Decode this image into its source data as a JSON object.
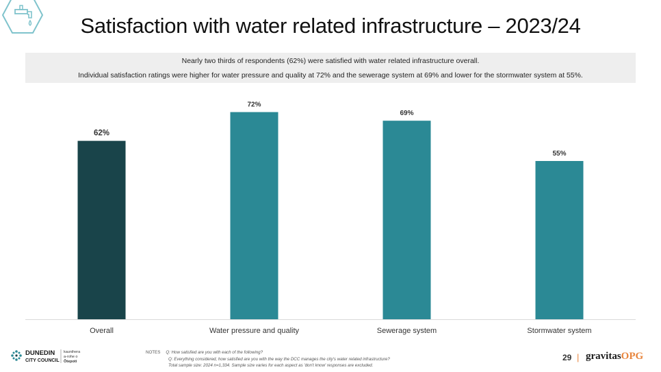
{
  "title": "Satisfaction with water related infrastructure – 2023/24",
  "summary": {
    "line1": "Nearly two thirds of respondents (62%) were satisfied with water related infrastructure overall.",
    "line2": "Individual satisfaction ratings were higher for water pressure and quality at 72% and the sewerage system at 69% and lower for the stormwater system at 55%."
  },
  "colors": {
    "overall": "#19444a",
    "aspects": "#2b8995",
    "summary_bg": "#eeeeee",
    "accent": "#e8853d"
  },
  "chart_data": {
    "type": "bar",
    "categories": [
      "Overall",
      "Water pressure and quality",
      "Sewerage system",
      "Stormwater system"
    ],
    "values": [
      62,
      72,
      69,
      55
    ],
    "data_labels": [
      "62%",
      "72%",
      "69%",
      "55%"
    ],
    "ylim": [
      0,
      80
    ],
    "grid": false,
    "title": "",
    "xlabel": "",
    "ylabel": ""
  },
  "footer": {
    "notes_label": "NOTES",
    "notes": [
      "Q: How satisfied are you with each of the following?",
      "Q: Everything considered, how satisfied are you with the way the DCC manages the city's water related infrastructure?",
      "Total sample size: 2024 n=1,334. Sample size varies  for each aspect as 'don't know' responses are excluded."
    ],
    "page_number": "29",
    "separator": "|",
    "brand_main": "gravitas",
    "brand_accent": "OPG",
    "council_logo": {
      "line1": "DUNEDIN",
      "line2": "CITY COUNCIL",
      "maori1": "kaunihera",
      "maori2": "a-rohe o",
      "maori3": "Ōtepoti"
    }
  },
  "icons": {
    "header": "water-tap-icon"
  }
}
